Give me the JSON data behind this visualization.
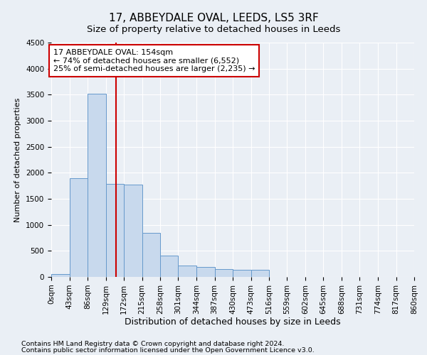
{
  "title": "17, ABBEYDALE OVAL, LEEDS, LS5 3RF",
  "subtitle": "Size of property relative to detached houses in Leeds",
  "xlabel": "Distribution of detached houses by size in Leeds",
  "ylabel": "Number of detached properties",
  "footer_line1": "Contains HM Land Registry data © Crown copyright and database right 2024.",
  "footer_line2": "Contains public sector information licensed under the Open Government Licence v3.0.",
  "annotation_line1": "17 ABBEYDALE OVAL: 154sqm",
  "annotation_line2": "← 74% of detached houses are smaller (6,552)",
  "annotation_line3": "25% of semi-detached houses are larger (2,235) →",
  "bar_color": "#c8d9ed",
  "bar_edge_color": "#6699cc",
  "vline_color": "#cc0000",
  "vline_x": 154,
  "annotation_box_edge_color": "#cc0000",
  "bin_edges": [
    0,
    43,
    86,
    129,
    172,
    215,
    258,
    301,
    344,
    387,
    430,
    473,
    516,
    559,
    602,
    645,
    688,
    731,
    774,
    817,
    860
  ],
  "bar_heights": [
    55,
    1900,
    3520,
    1780,
    1770,
    840,
    415,
    215,
    185,
    155,
    140,
    130,
    0,
    0,
    0,
    0,
    0,
    0,
    0,
    0
  ],
  "ylim": [
    0,
    4500
  ],
  "yticks": [
    0,
    500,
    1000,
    1500,
    2000,
    2500,
    3000,
    3500,
    4000,
    4500
  ],
  "background_color": "#eaeff5",
  "plot_background_color": "#eaeff5",
  "grid_color": "#ffffff",
  "title_fontsize": 11,
  "subtitle_fontsize": 9.5,
  "xlabel_fontsize": 9,
  "ylabel_fontsize": 8,
  "tick_fontsize": 7.5,
  "annotation_fontsize": 8,
  "footer_fontsize": 6.8
}
